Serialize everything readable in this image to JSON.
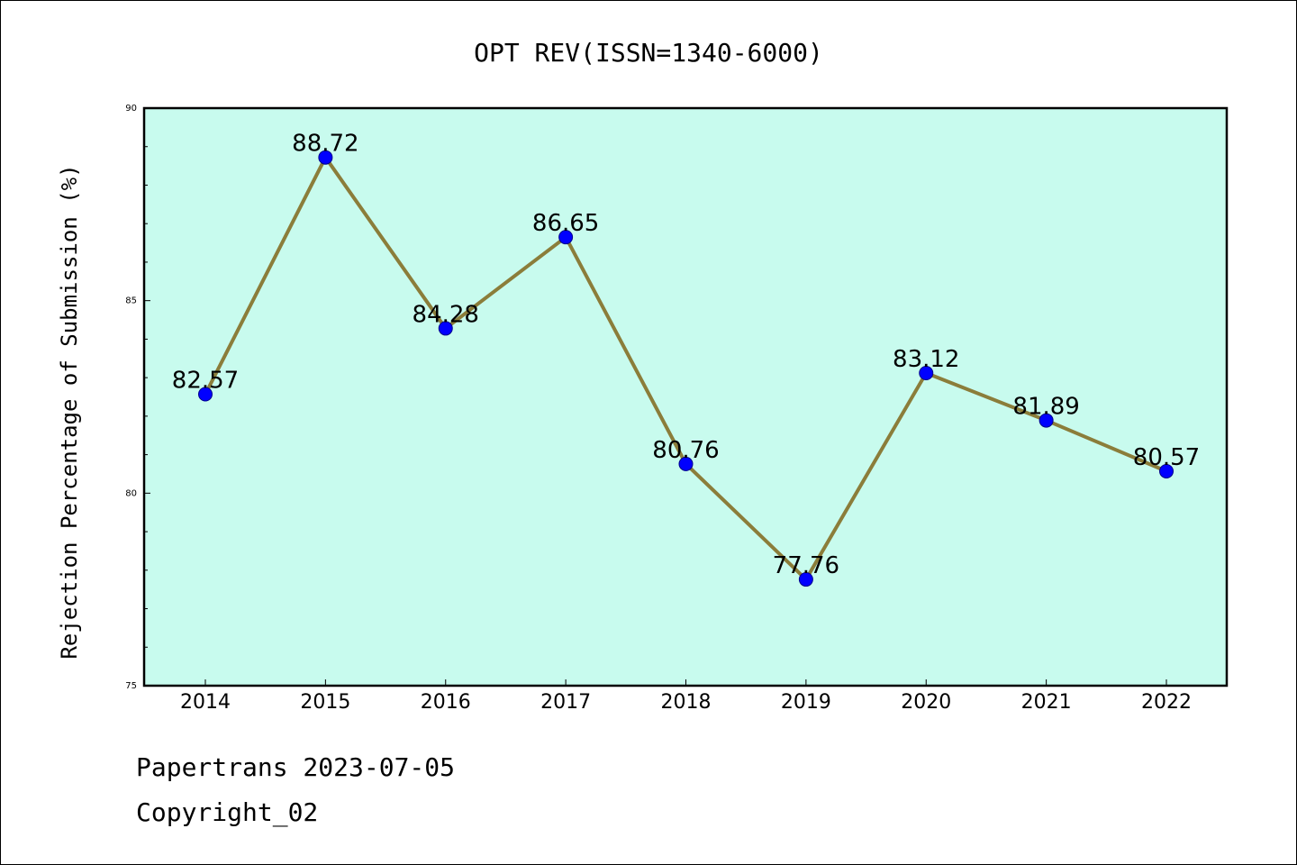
{
  "chart_data": {
    "type": "line",
    "title": "OPT REV(ISSN=1340-6000)",
    "xlabel": "",
    "ylabel": "Rejection Percentage of Submission (%)",
    "x": [
      "2014",
      "2015",
      "2016",
      "2017",
      "2018",
      "2019",
      "2020",
      "2021",
      "2022"
    ],
    "series": [
      {
        "values": [
          82.57,
          88.72,
          84.28,
          86.65,
          80.76,
          77.76,
          83.12,
          81.89,
          80.57
        ]
      }
    ],
    "data_labels": [
      "82.57",
      "88.72",
      "84.28",
      "86.65",
      "80.76",
      "77.76",
      "83.12",
      "81.89",
      "80.57"
    ],
    "ylim": [
      75,
      90
    ],
    "yticks": [
      "75",
      "80",
      "85",
      "90"
    ],
    "grid": false,
    "legend": "none",
    "colors": {
      "plot_background": "#c8fbee",
      "line": "#8b7d3a",
      "marker": "#0000ff"
    }
  },
  "footer": {
    "line1": "Papertrans 2023-07-05",
    "line2": "Copyright_02"
  }
}
